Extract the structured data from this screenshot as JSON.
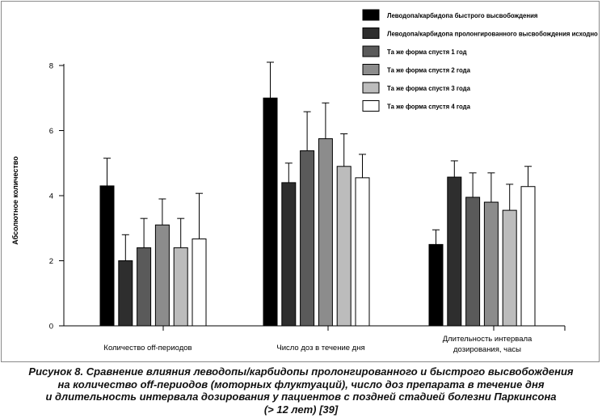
{
  "chart_data": {
    "type": "bar",
    "ylabel": "Абсолютное количество",
    "ylim": [
      0,
      8
    ],
    "yticks": [
      0,
      2,
      4,
      6,
      8
    ],
    "grid": false,
    "legend_position": "top-right",
    "categories": [
      [
        "Количество off-периодов"
      ],
      [
        "Число доз в течение дня"
      ],
      [
        "Длительность интервала",
        "дозирования, часы"
      ]
    ],
    "series": [
      {
        "name": "Леводопа/карбидопа быстрого высвобождения",
        "color": "#000000",
        "values": [
          4.3,
          7.0,
          2.5
        ],
        "errors": [
          0.85,
          1.1,
          0.45
        ]
      },
      {
        "name": "Леводопа/карбидопа пролонгированного высвобождения исходно",
        "color": "#2e2e2e",
        "values": [
          2.0,
          4.4,
          4.57
        ],
        "errors": [
          0.8,
          0.6,
          0.5
        ]
      },
      {
        "name": "Та же форма спустя 1 год",
        "color": "#5a5a5a",
        "values": [
          2.4,
          5.38,
          3.95
        ],
        "errors": [
          0.9,
          1.2,
          0.75
        ]
      },
      {
        "name": "Та же форма спустя 2 года",
        "color": "#8c8c8c",
        "values": [
          3.1,
          5.75,
          3.8
        ],
        "errors": [
          0.8,
          1.1,
          0.9
        ]
      },
      {
        "name": "Та же форма спустя 3 года",
        "color": "#bcbcbc",
        "values": [
          2.4,
          4.9,
          3.55
        ],
        "errors": [
          0.9,
          1.0,
          0.8
        ]
      },
      {
        "name": "Та же форма спустя 4 года",
        "color": "#ffffff",
        "values": [
          2.67,
          4.55,
          4.28
        ],
        "errors": [
          1.4,
          0.72,
          0.62
        ]
      }
    ]
  },
  "caption": {
    "lines": [
      "Рисунок 8. Сравнение влияния леводопы/карбидопы пролонгированного и быстрого высвобождения",
      "на количество off-периодов (моторных флуктуаций), число доз препарата в течение дня",
      "и длительность интервала дозирования у пациентов с поздней стадией болезни Паркинсона",
      "(> 12 лет) [39]"
    ]
  }
}
